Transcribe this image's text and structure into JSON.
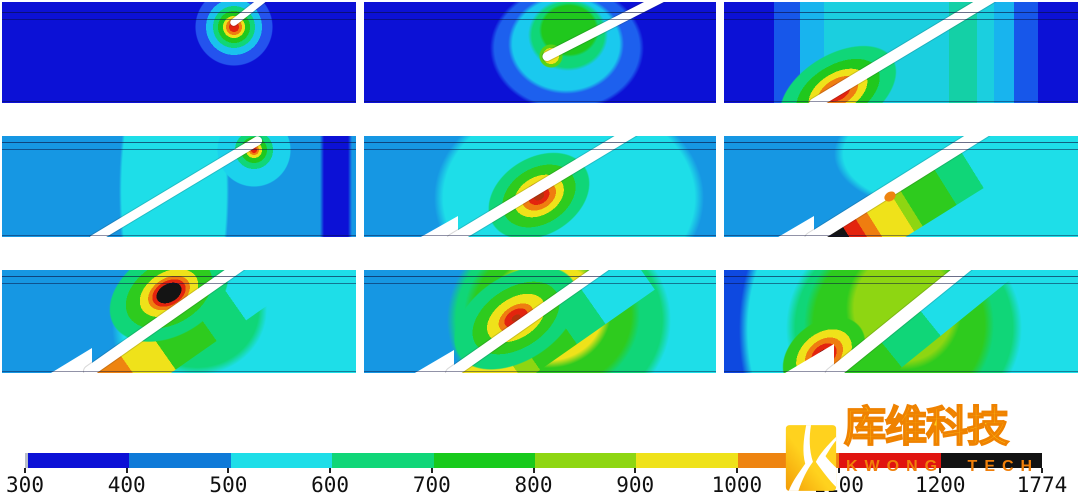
{
  "figure": {
    "description": "3x3 grid of thermal contour-plot snapshots of an inclined laser track in a layered specimen",
    "rows": 3,
    "cols": 3
  },
  "colorbar": {
    "labels": [
      "300",
      "400",
      "500",
      "600",
      "700",
      "800",
      "900",
      "1000",
      "1100",
      "1200",
      "1774"
    ],
    "segment_colors": [
      "#0c11d6",
      "#0e7ad8",
      "#1edee8",
      "#10d678",
      "#18ca1c",
      "#8ed612",
      "#efe21a",
      "#ee8410",
      "#e01410",
      "#121212"
    ]
  },
  "watermark": {
    "brand_cn": "库维科技",
    "brand_en": "KWONG TECH",
    "accent_yellow": "#ffd21e",
    "accent_orange": "#f08300"
  },
  "chart_data": {
    "type": "heatmap",
    "subtype": "contour-grid",
    "grid": {
      "rows": 3,
      "cols": 3
    },
    "colorbar": {
      "min": 300,
      "max": 1774,
      "ticks": [
        300,
        400,
        500,
        600,
        700,
        800,
        900,
        1000,
        1100,
        1200,
        1774
      ],
      "colors": [
        "#0c11d6",
        "#0e7ad8",
        "#1edee8",
        "#10d678",
        "#18ca1c",
        "#8ed612",
        "#efe21a",
        "#ee8410",
        "#e01410",
        "#121212"
      ],
      "legend_position": "bottom"
    },
    "panels": [
      {
        "row": 1,
        "col": 1,
        "note": "cold field ~300-400; small melt pool (peak >1100) at top surface around short inclined track tip"
      },
      {
        "row": 1,
        "col": 2,
        "note": "cold field ~300-400; larger 500-800 halo around track tip at mid depth"
      },
      {
        "row": 1,
        "col": 3,
        "note": "track fully inserted; hot zone ~1100-1200 at track root near bottom; 400-700 bands across section"
      },
      {
        "row": 2,
        "col": 1,
        "note": "field warmed to ~400-600; residual 300-400 band at right edge; small hot spot at top of track"
      },
      {
        "row": 2,
        "col": 2,
        "note": "hot spot ~1000-1200 at mid-track below band with 600-800 rings and 500-600 halo"
      },
      {
        "row": 2,
        "col": 3,
        "note": "peak >1200 (black) at track root bottom-left; 700-1000 gradient along bottom of track"
      },
      {
        "row": 3,
        "col": 1,
        "note": "peak >1200 (black) near top surface above track; broad 600-900 field and orange-yellow trail below"
      },
      {
        "row": 3,
        "col": 2,
        "note": "elongated ~1100-1200 red core on track; yellow 900-1000 halo reaching top surface"
      },
      {
        "row": 3,
        "col": 3,
        "note": "red ~1100-1200 core at track root; green 700-900 field dominates center, cyan 500-600 at right"
      }
    ]
  }
}
